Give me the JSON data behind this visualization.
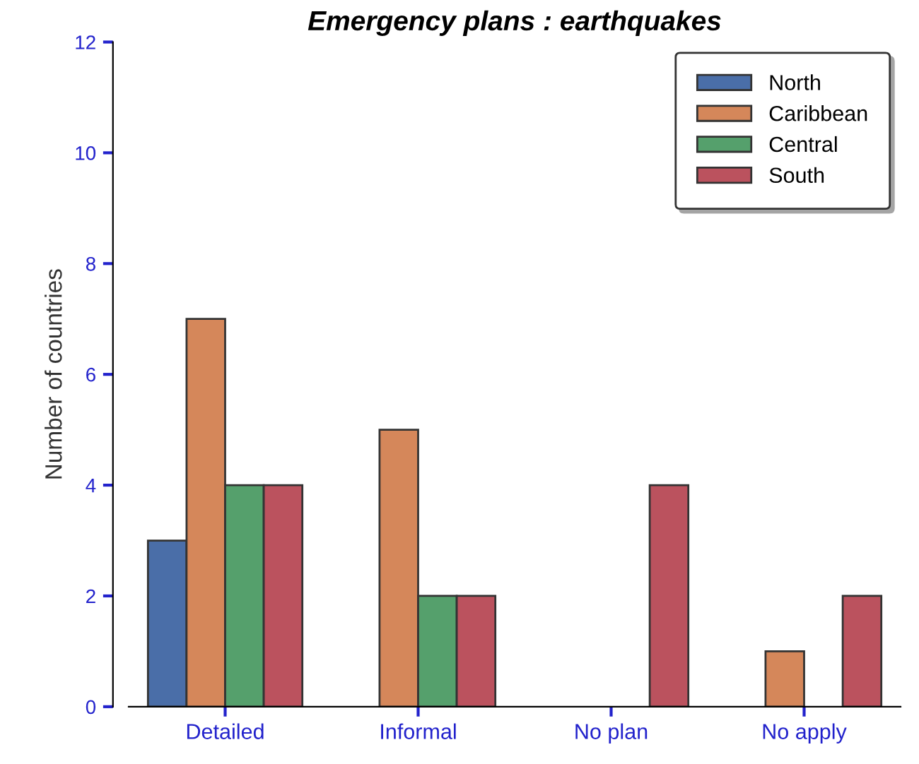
{
  "chart_data": {
    "type": "bar",
    "title": "Emergency plans : earthquakes",
    "ylabel": "Number of countries",
    "categories": [
      "Detailed",
      "Informal",
      "No plan",
      "No apply"
    ],
    "series": [
      {
        "name": "North",
        "color": "#4a6ea8",
        "values": [
          3,
          0,
          0,
          0
        ]
      },
      {
        "name": "Caribbean",
        "color": "#d5875a",
        "values": [
          7,
          5,
          0,
          1
        ]
      },
      {
        "name": "Central",
        "color": "#55a06c",
        "values": [
          4,
          2,
          0,
          0
        ]
      },
      {
        "name": "South",
        "color": "#bb525e",
        "values": [
          4,
          2,
          4,
          2
        ]
      }
    ],
    "ylim": [
      0,
      12
    ],
    "yticks": [
      0,
      2,
      4,
      6,
      8,
      10,
      12
    ],
    "grid": false,
    "legend": "top right"
  }
}
